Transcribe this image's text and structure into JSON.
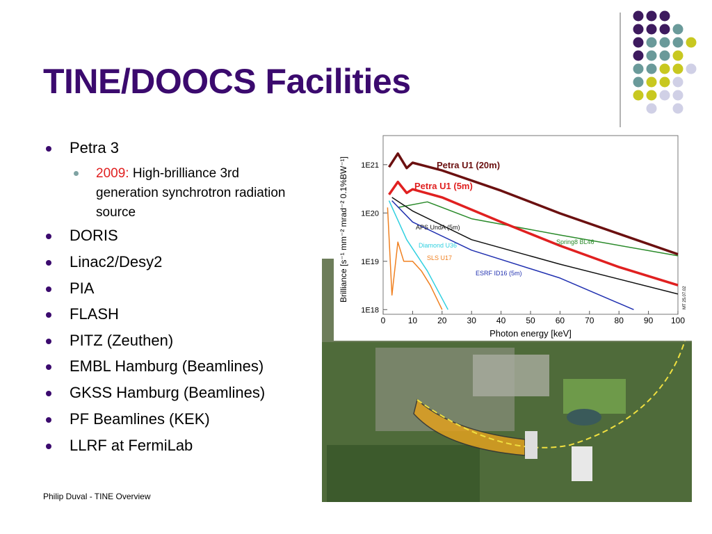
{
  "slide": {
    "title": "TINE/DOOCS Facilities",
    "bullets": [
      {
        "text": "Petra 3",
        "sub": [
          {
            "year": "2009:",
            "text": "High-brilliance 3rd generation synchrotron radiation source"
          }
        ]
      },
      {
        "text": "DORIS"
      },
      {
        "text": "Linac2/Desy2"
      },
      {
        "text": "PIA"
      },
      {
        "text": "FLASH"
      },
      {
        "text": "PITZ (Zeuthen)"
      },
      {
        "text": "EMBL Hamburg (Beamlines)"
      },
      {
        "text": "GKSS Hamburg (Beamlines)"
      },
      {
        "text": "PF Beamlines (KEK)"
      },
      {
        "text": "LLRF at FermiLab"
      }
    ],
    "footer": "Philip Duval - TINE Overview"
  },
  "chart_data": {
    "type": "line",
    "ylog": true,
    "ylabel": "Brilliance [s⁻¹ mm⁻² mrad⁻² 0.1%BW⁻¹]",
    "xlabel": "Photon energy [keV]",
    "note": "MT 25.07.02",
    "xlim": [
      0,
      100
    ],
    "xticks": [
      0,
      10,
      20,
      30,
      40,
      50,
      60,
      70,
      80,
      90,
      100
    ],
    "ylim": [
      8e+17,
      4e+21
    ],
    "yticks": [
      {
        "value": 1e+18,
        "label": "1E18"
      },
      {
        "value": 1e+19,
        "label": "1E19"
      },
      {
        "value": 1e+20,
        "label": "1E20"
      },
      {
        "value": 1e+21,
        "label": "1E21"
      }
    ],
    "series": [
      {
        "name": "Petra U1 (20m)",
        "color": "#6b1010",
        "x": [
          2,
          5,
          8,
          10,
          20,
          40,
          60,
          80,
          100
        ],
        "values": [
          8.9e+20,
          1.7e+21,
          8.5e+20,
          1.1e+21,
          7.6e+20,
          2.9e+20,
          9.8e+19,
          3.7e+19,
          1.4e+19
        ]
      },
      {
        "name": "Petra U1 (5m)",
        "color": "#e02020",
        "x": [
          2,
          5,
          8,
          10,
          20,
          40,
          60,
          80,
          100
        ],
        "values": [
          2.4e+20,
          4.4e+20,
          2.6e+20,
          3.1e+20,
          2.1e+20,
          6.5e+19,
          2.1e+19,
          7.6e+18,
          3.2e+18
        ]
      },
      {
        "name": "APS UndA (5m)",
        "color": "#101010",
        "x": [
          3,
          10,
          30,
          60,
          100
        ],
        "values": [
          2.1e+20,
          1.1e+20,
          2.8e+19,
          8.7e+18,
          2.1e+18
        ]
      },
      {
        "name": "Spring8 BL46",
        "color": "#2a8a2a",
        "x": [
          5,
          15,
          30,
          60,
          100
        ],
        "values": [
          1.3e+20,
          1.7e+20,
          7.6e+19,
          3.5e+19,
          1.3e+19
        ]
      },
      {
        "name": "Diamond U36",
        "color": "#30d0e0",
        "x": [
          2,
          8,
          15,
          20,
          22
        ],
        "values": [
          1.8e+20,
          2.8e+19,
          6.3e+18,
          1.7e+18,
          1e+18
        ]
      },
      {
        "name": "SLS U17",
        "color": "#f08020",
        "x": [
          1.5,
          3,
          5,
          7,
          10,
          13,
          16,
          20
        ],
        "values": [
          1.3e+20,
          2e+18,
          2.5e+19,
          1e+19,
          1e+19,
          6.3e+18,
          3.2e+18,
          1e+18
        ]
      },
      {
        "name": "ESRF ID16 (5m)",
        "color": "#2030b0",
        "x": [
          3,
          10,
          30,
          60,
          85
        ],
        "values": [
          1.8e+20,
          6.5e+19,
          1.7e+19,
          4.5e+18,
          1e+18
        ]
      }
    ]
  }
}
